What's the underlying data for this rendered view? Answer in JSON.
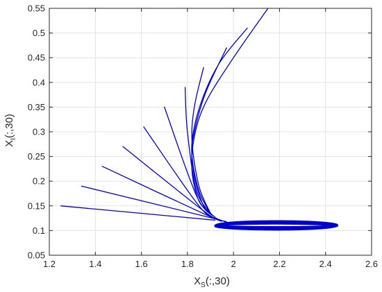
{
  "chart_data": {
    "type": "line",
    "title": "",
    "xlabel": {
      "main": "X",
      "sub": "S",
      "suffix": "(:,30)"
    },
    "ylabel": {
      "main": "X",
      "sub": "I",
      "suffix": "(:,30)"
    },
    "xlim": [
      1.2,
      2.6
    ],
    "ylim": [
      0.05,
      0.55
    ],
    "xticks": [
      1.2,
      1.4,
      1.6,
      1.8,
      2.0,
      2.2,
      2.4,
      2.6
    ],
    "xtick_labels": [
      "1.2",
      "1.4",
      "1.6",
      "1.8",
      "2",
      "2.2",
      "2.4",
      "2.6"
    ],
    "yticks": [
      0.05,
      0.1,
      0.15,
      0.2,
      0.25,
      0.3,
      0.35,
      0.4,
      0.45,
      0.5,
      0.55
    ],
    "ytick_labels": [
      "0.05",
      "0.1",
      "0.15",
      "0.2",
      "0.25",
      "0.3",
      "0.35",
      "0.4",
      "0.45",
      "0.5",
      "0.55"
    ],
    "grid": true,
    "line_color": "#0000cc",
    "series": [
      {
        "x": [
          1.25,
          1.92
        ],
        "y": [
          0.15,
          0.121
        ]
      },
      {
        "x": [
          1.34,
          1.91,
          1.96
        ],
        "y": [
          0.19,
          0.125,
          0.118
        ]
      },
      {
        "x": [
          1.43,
          1.89,
          1.95
        ],
        "y": [
          0.23,
          0.13,
          0.12
        ]
      },
      {
        "x": [
          1.52,
          1.87,
          1.94
        ],
        "y": [
          0.27,
          0.14,
          0.122
        ]
      },
      {
        "x": [
          1.61,
          1.85,
          1.93
        ],
        "y": [
          0.31,
          0.15,
          0.124
        ]
      },
      {
        "x": [
          1.7,
          1.84,
          1.92
        ],
        "y": [
          0.35,
          0.17,
          0.127
        ]
      },
      {
        "x": [
          1.79,
          1.8,
          1.84,
          1.91
        ],
        "y": [
          0.39,
          0.3,
          0.18,
          0.13
        ]
      },
      {
        "x": [
          1.87,
          1.83,
          1.82,
          1.85,
          1.9
        ],
        "y": [
          0.43,
          0.35,
          0.28,
          0.19,
          0.135
        ]
      },
      {
        "x": [
          1.97,
          1.88,
          1.83,
          1.82,
          1.85,
          1.9
        ],
        "y": [
          0.47,
          0.38,
          0.3,
          0.25,
          0.18,
          0.135
        ]
      },
      {
        "x": [
          2.06,
          1.94,
          1.86,
          1.82,
          1.83,
          1.87,
          1.91
        ],
        "y": [
          0.51,
          0.44,
          0.36,
          0.28,
          0.21,
          0.15,
          0.13
        ]
      },
      {
        "x": [
          2.15,
          2.0,
          1.88,
          1.83,
          1.82,
          1.85,
          1.9
        ],
        "y": [
          0.55,
          0.45,
          0.36,
          0.29,
          0.22,
          0.16,
          0.135
        ]
      }
    ],
    "limit_cycle": {
      "x_min": 1.92,
      "x_max": 2.45,
      "y_center": 0.11,
      "y_half_min": 0.003,
      "y_half_max": 0.009,
      "loops": 14
    }
  }
}
